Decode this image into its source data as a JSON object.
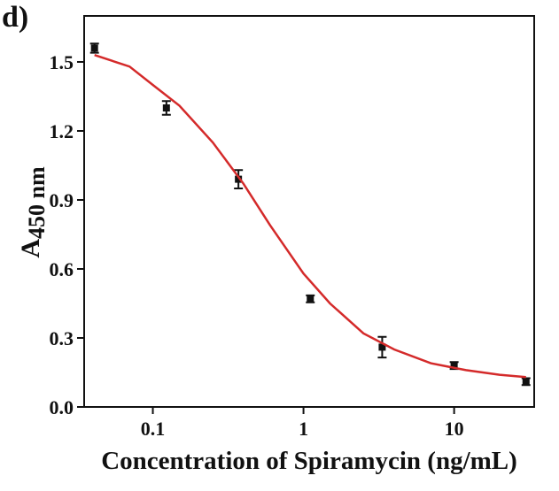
{
  "chart_data": {
    "type": "scatter",
    "title": "d)",
    "xlabel": "Concentration of Spiramycin (ng/mL)",
    "ylabel": "A",
    "ylabel_sub": "450 nm",
    "xscale": "log",
    "xlim": [
      0.035,
      34
    ],
    "ylim": [
      0,
      1.7
    ],
    "xticks": [
      0.1,
      1,
      10
    ],
    "yticks": [
      {
        "value": 0,
        "label": "0.0"
      },
      0.3,
      0.6,
      0.9,
      1.2,
      1.5
    ],
    "series": [
      {
        "type": "scatter",
        "color": "#111111",
        "x": [
          0.041,
          0.123,
          0.37,
          1.11,
          3.33,
          10,
          30
        ],
        "values": [
          1.56,
          1.3,
          0.99,
          0.47,
          0.26,
          0.18,
          0.11
        ],
        "errors": [
          0.02,
          0.03,
          0.04,
          0.015,
          0.045,
          0.015,
          0.015
        ]
      },
      {
        "type": "line",
        "color": "#d42a2a",
        "x": [
          0.041,
          0.07,
          0.1,
          0.15,
          0.25,
          0.4,
          0.6,
          1,
          1.5,
          2.5,
          4,
          7,
          12,
          20,
          30
        ],
        "values": [
          1.53,
          1.48,
          1.4,
          1.31,
          1.15,
          0.97,
          0.79,
          0.58,
          0.45,
          0.32,
          0.25,
          0.19,
          0.16,
          0.14,
          0.13
        ]
      }
    ]
  }
}
